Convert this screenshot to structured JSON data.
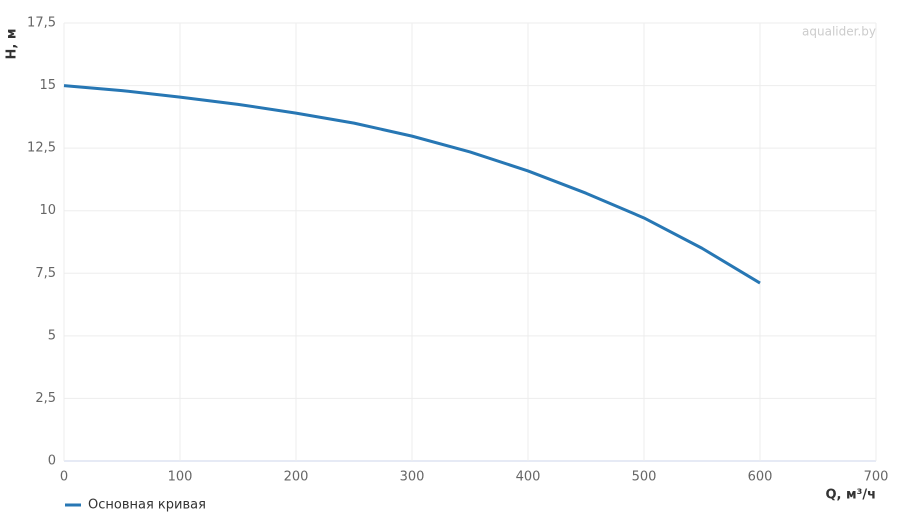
{
  "chart_data": {
    "type": "line",
    "watermark": "aqualider.by",
    "xlabel": "Q, м³/ч",
    "ylabel": "H, м",
    "x": [
      0,
      50,
      100,
      150,
      200,
      250,
      300,
      350,
      400,
      450,
      500,
      550,
      600
    ],
    "series": [
      {
        "name": "Основная кривая",
        "color": "#2777b4",
        "values": [
          15.0,
          14.8,
          14.54,
          14.25,
          13.9,
          13.5,
          12.98,
          12.35,
          11.59,
          10.7,
          9.71,
          8.5,
          7.11
        ]
      }
    ],
    "xlim": [
      0,
      700
    ],
    "xticks": [
      0,
      100,
      200,
      300,
      400,
      500,
      600,
      700
    ],
    "ylim": [
      0,
      17.5
    ],
    "yticks": [
      0,
      {
        "value": 2.5,
        "label": "2,5"
      },
      5,
      {
        "value": 7.5,
        "label": "7,5"
      },
      10,
      {
        "value": 12.5,
        "label": "12,5"
      },
      15,
      {
        "value": 17.5,
        "label": "17,5"
      }
    ],
    "grid": true
  }
}
